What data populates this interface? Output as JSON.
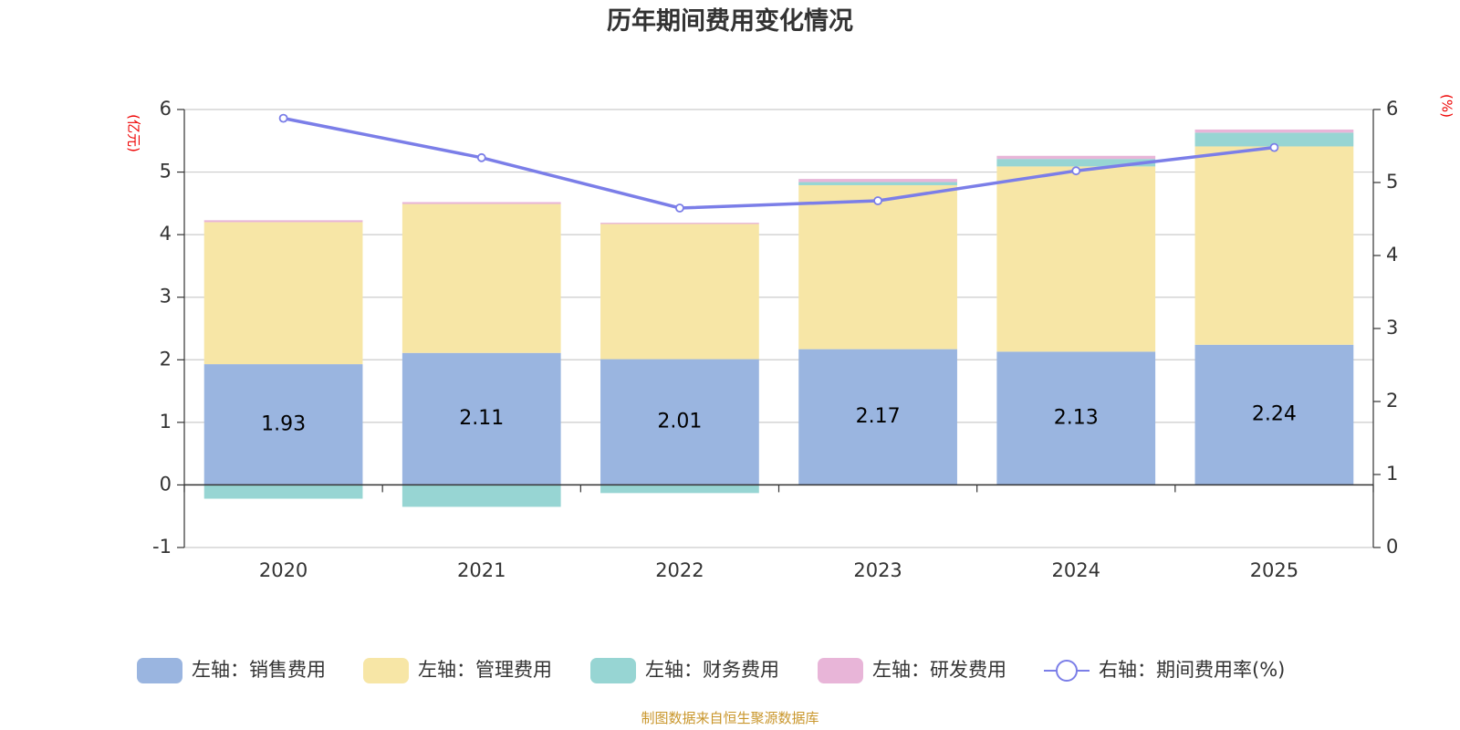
{
  "chart_data": {
    "type": "bar",
    "title": "历年期间费用变化情况",
    "categories": [
      "2020",
      "2021",
      "2022",
      "2023",
      "2024",
      "2025"
    ],
    "left_axis": {
      "unit": "(亿元)",
      "ylim": [
        -1,
        6
      ],
      "ticks": [
        "-1",
        "0",
        "1",
        "2",
        "3",
        "4",
        "5",
        "6"
      ]
    },
    "right_axis": {
      "unit": "(%)",
      "ylim": [
        0,
        6
      ],
      "ticks": [
        "0",
        "1",
        "2",
        "3",
        "4",
        "5",
        "6"
      ]
    },
    "series": [
      {
        "name": "左轴：销售费用",
        "type": "bar",
        "stack": true,
        "color": "#9ab5e0",
        "values": [
          1.93,
          2.11,
          2.01,
          2.17,
          2.13,
          2.24
        ],
        "labels": [
          "1.93",
          "2.11",
          "2.01",
          "2.17",
          "2.13",
          "2.24"
        ]
      },
      {
        "name": "左轴：管理费用",
        "type": "bar",
        "stack": true,
        "color": "#f7e6a6",
        "values": [
          2.27,
          2.38,
          2.16,
          2.62,
          2.96,
          3.17
        ]
      },
      {
        "name": "左轴：财务费用",
        "type": "bar",
        "stack": true,
        "color": "#97d5d3",
        "values": [
          -0.22,
          -0.35,
          -0.13,
          0.05,
          0.12,
          0.22
        ]
      },
      {
        "name": "左轴：研发费用",
        "type": "bar",
        "stack": true,
        "color": "#e8b5d8",
        "values": [
          0.03,
          0.03,
          0.02,
          0.05,
          0.05,
          0.05
        ]
      },
      {
        "name": "右轴：期间费用率(%)",
        "type": "line",
        "axis": "right",
        "color": "#7b7ee8",
        "values": [
          5.88,
          5.34,
          4.65,
          4.75,
          5.16,
          5.48
        ]
      }
    ]
  },
  "footer": {
    "source": "制图数据来自恒生聚源数据库"
  }
}
